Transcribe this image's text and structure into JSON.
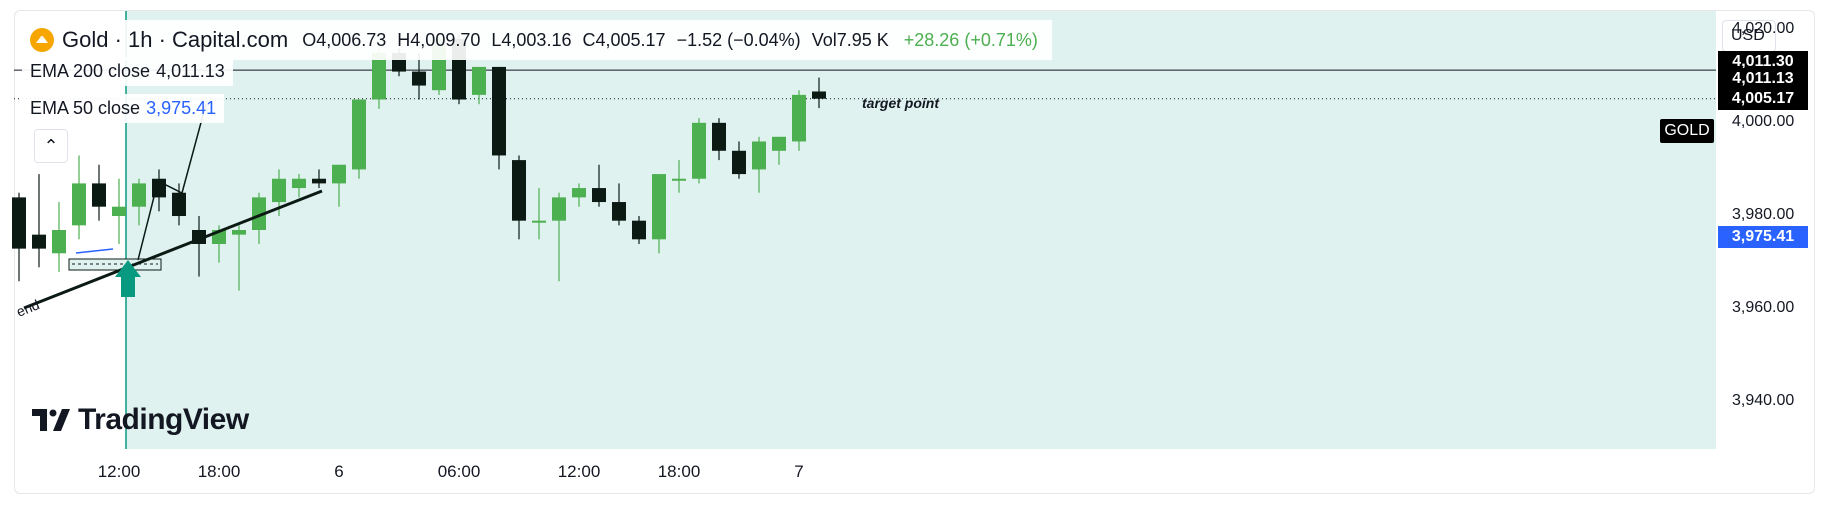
{
  "header": {
    "symbol": "Gold · 1h · Capital.com",
    "open": "O4,006.73",
    "high": "H4,009.70",
    "low": "L4,003.16",
    "close": "C4,005.17",
    "change": "−1.52 (−0.04%)",
    "volume": "Vol7.95 K",
    "period_change": "+28.26 (+0.71%)"
  },
  "indicators": {
    "ema200_label": "EMA 200 close",
    "ema200_value": "4,011.13",
    "ema50_label": "EMA 50 close",
    "ema50_value": "3,975.41"
  },
  "currency": "USD",
  "symbol_tag": "GOLD",
  "annotations": {
    "target": "target point",
    "trend": "end"
  },
  "branding": "TradingView",
  "colors": {
    "up": "#4caf50",
    "down": "#0c1a14",
    "bg_zone": "#dff2ef",
    "ema50": "#2962ff",
    "marker": "#089981"
  },
  "chart_data": {
    "type": "candlestick",
    "title": "Gold · 1h · Capital.com",
    "ylim": [
      3930,
      4024
    ],
    "y_ticks": [
      4020,
      4000,
      3980,
      3960,
      3940
    ],
    "y_tick_labels": [
      "4,020.00",
      "4,000.00",
      "3,980.00",
      "3,960.00",
      "3,940.00"
    ],
    "x_tick_labels": [
      {
        "label": "12:00",
        "index": 5
      },
      {
        "label": "18:00",
        "index": 10
      },
      {
        "label": "6",
        "index": 16
      },
      {
        "label": "06:00",
        "index": 22
      },
      {
        "label": "12:00",
        "index": 28
      },
      {
        "label": "18:00",
        "index": 33
      },
      {
        "label": "7",
        "index": 39
      }
    ],
    "candles": [
      {
        "o": 3984,
        "h": 3985,
        "l": 3966,
        "c": 3973
      },
      {
        "o": 3976,
        "h": 3989,
        "l": 3969,
        "c": 3973
      },
      {
        "o": 3972,
        "h": 3983,
        "l": 3968,
        "c": 3977
      },
      {
        "o": 3978,
        "h": 3993,
        "l": 3975,
        "c": 3987
      },
      {
        "o": 3987,
        "h": 3991,
        "l": 3979,
        "c": 3982
      },
      {
        "o": 3980,
        "h": 3988,
        "l": 3974,
        "c": 3982
      },
      {
        "o": 3982,
        "h": 3988,
        "l": 3978,
        "c": 3987
      },
      {
        "o": 3988,
        "h": 3990,
        "l": 3981,
        "c": 3984
      },
      {
        "o": 3985,
        "h": 3987,
        "l": 3978,
        "c": 3980
      },
      {
        "o": 3977,
        "h": 3980,
        "l": 3967,
        "c": 3974
      },
      {
        "o": 3974,
        "h": 3978,
        "l": 3970,
        "c": 3977
      },
      {
        "o": 3976,
        "h": 3978,
        "l": 3964,
        "c": 3977
      },
      {
        "o": 3977,
        "h": 3985,
        "l": 3974,
        "c": 3984
      },
      {
        "o": 3983,
        "h": 3990,
        "l": 3980,
        "c": 3988
      },
      {
        "o": 3986,
        "h": 3989,
        "l": 3984,
        "c": 3988
      },
      {
        "o": 3988,
        "h": 3990,
        "l": 3986,
        "c": 3987
      },
      {
        "o": 3987,
        "h": 3991,
        "l": 3982,
        "c": 3991
      },
      {
        "o": 3990,
        "h": 4005,
        "l": 3988,
        "c": 4005
      },
      {
        "o": 4005,
        "h": 4017,
        "l": 4003,
        "c": 4015
      },
      {
        "o": 4015,
        "h": 4016,
        "l": 4010,
        "c": 4011
      },
      {
        "o": 4011,
        "h": 4015,
        "l": 4005,
        "c": 4008
      },
      {
        "o": 4007,
        "h": 4019,
        "l": 4006,
        "c": 4018
      },
      {
        "o": 4018,
        "h": 4019,
        "l": 4004,
        "c": 4005
      },
      {
        "o": 4006,
        "h": 4012,
        "l": 4004,
        "c": 4012
      },
      {
        "o": 4012,
        "h": 4012,
        "l": 3990,
        "c": 3993
      },
      {
        "o": 3992,
        "h": 3993,
        "l": 3975,
        "c": 3979
      },
      {
        "o": 3979,
        "h": 3986,
        "l": 3975,
        "c": 3979
      },
      {
        "o": 3979,
        "h": 3985,
        "l": 3966,
        "c": 3984
      },
      {
        "o": 3984,
        "h": 3987,
        "l": 3982,
        "c": 3986
      },
      {
        "o": 3986,
        "h": 3991,
        "l": 3982,
        "c": 3983
      },
      {
        "o": 3983,
        "h": 3987,
        "l": 3978,
        "c": 3979
      },
      {
        "o": 3979,
        "h": 3980,
        "l": 3974,
        "c": 3975
      },
      {
        "o": 3975,
        "h": 3989,
        "l": 3972,
        "c": 3989
      },
      {
        "o": 3988,
        "h": 3992,
        "l": 3985,
        "c": 3988
      },
      {
        "o": 3988,
        "h": 4001,
        "l": 3987,
        "c": 4000
      },
      {
        "o": 4000,
        "h": 4001,
        "l": 3992,
        "c": 3994
      },
      {
        "o": 3994,
        "h": 3996,
        "l": 3988,
        "c": 3989
      },
      {
        "o": 3990,
        "h": 3997,
        "l": 3985,
        "c": 3996
      },
      {
        "o": 3994,
        "h": 3997,
        "l": 3991,
        "c": 3997
      },
      {
        "o": 3996,
        "h": 4007,
        "l": 3994,
        "c": 4006
      },
      {
        "o": 4006.73,
        "h": 4009.7,
        "l": 4003.16,
        "c": 4005.17
      }
    ],
    "lines": {
      "ema200": 4011.13,
      "ema50": 3975.41,
      "target": 4011.3,
      "last_price": 4005.17
    },
    "price_badges": [
      "4,011.30",
      "4,011.13",
      "4,005.17",
      "3,975.41"
    ]
  }
}
